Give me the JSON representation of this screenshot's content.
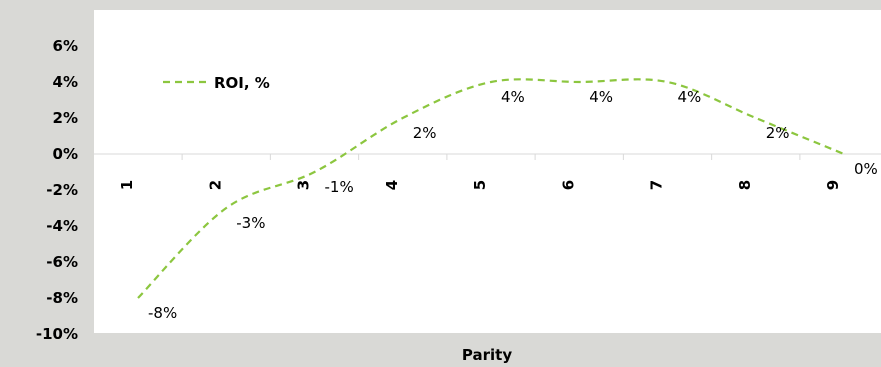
{
  "chart_data": {
    "type": "line",
    "title": "",
    "xlabel": "Parity",
    "ylabel": "",
    "categories": [
      "1",
      "2",
      "3",
      "4",
      "5",
      "6",
      "7",
      "8",
      "9"
    ],
    "series": [
      {
        "name": "ROI, %",
        "values": [
          -8,
          -3,
          -1,
          2,
          4,
          4,
          4,
          2,
          0
        ],
        "data_labels": [
          "-8%",
          "-3%",
          "-1%",
          "2%",
          "4%",
          "4%",
          "4%",
          "2%",
          "0%"
        ],
        "color": "#8CC63F",
        "line_style": "dashed"
      }
    ],
    "ylim": [
      -10,
      6
    ],
    "yticks": [
      -10,
      -8,
      -6,
      -4,
      -2,
      0,
      2,
      4,
      6
    ],
    "ytick_labels": [
      "-10%",
      "-8%",
      "-6%",
      "-4%",
      "-2%",
      "0%",
      "2%",
      "4%",
      "6%"
    ],
    "grid": false,
    "legend": "top-left",
    "plot_background": "#ffffff",
    "outer_background": "#D9D9D6"
  }
}
